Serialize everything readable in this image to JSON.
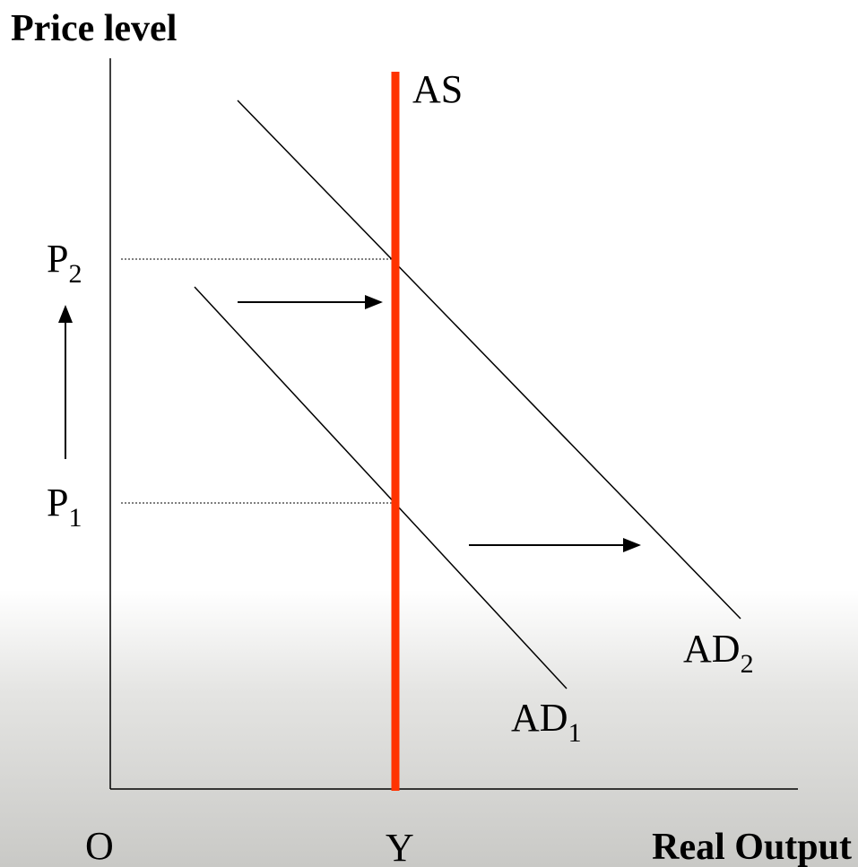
{
  "diagram": {
    "y_axis_label": "Price level",
    "x_axis_label": "Real Output",
    "origin_label": "O",
    "output_label": "Y",
    "supply_label": "AS",
    "price_labels": [
      {
        "text": "P",
        "sub": "1"
      },
      {
        "text": "P",
        "sub": "2"
      }
    ],
    "demand_labels": [
      {
        "text": "AD",
        "sub": "1"
      },
      {
        "text": "AD",
        "sub": "2"
      }
    ]
  }
}
